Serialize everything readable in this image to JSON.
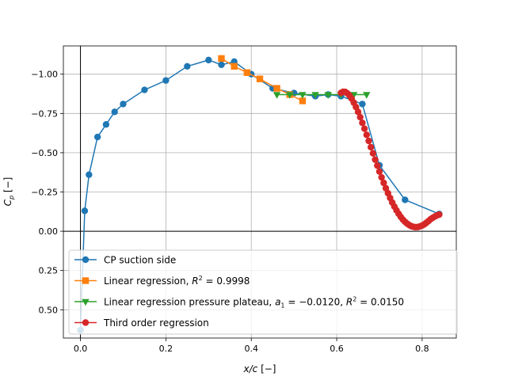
{
  "colors": {
    "background": "#ffffff",
    "axes": "#000000",
    "grid": "#b0b0b0",
    "legend_border": "#cccccc"
  },
  "chart_data": {
    "type": "line",
    "xlabel": "x/c [−]",
    "ylabel": "C_p [−]",
    "xlim": [
      -0.04,
      0.88
    ],
    "ylim": [
      0.68,
      -1.18
    ],
    "y_inverted": true,
    "grid": true,
    "reference_lines": {
      "x": 0.0,
      "y": 0.0
    },
    "xticks": [
      0.0,
      0.2,
      0.4,
      0.6,
      0.8
    ],
    "xtick_labels": [
      "0.0",
      "0.2",
      "0.4",
      "0.6",
      "0.8"
    ],
    "yticks": [
      -1.0,
      -0.75,
      -0.5,
      -0.25,
      0.0,
      0.25,
      0.5
    ],
    "ytick_labels": [
      "−1.00",
      "−0.75",
      "−0.50",
      "−0.25",
      "0.00",
      "0.25",
      "0.50"
    ],
    "legend_position": "lower-right",
    "series": [
      {
        "name": "CP suction side",
        "color": "#1f77b4",
        "marker": "circle",
        "x": [
          0.0,
          0.01,
          0.02,
          0.04,
          0.06,
          0.08,
          0.1,
          0.15,
          0.2,
          0.25,
          0.3,
          0.33,
          0.36,
          0.4,
          0.45,
          0.5,
          0.55,
          0.58,
          0.61,
          0.66,
          0.7,
          0.76,
          0.84
        ],
        "y": [
          0.63,
          -0.13,
          -0.36,
          -0.6,
          -0.68,
          -0.76,
          -0.81,
          -0.9,
          -0.96,
          -1.05,
          -1.09,
          -1.06,
          -1.08,
          -1.0,
          -0.91,
          -0.88,
          -0.86,
          -0.87,
          -0.86,
          -0.81,
          -0.42,
          -0.2,
          -0.11
        ]
      },
      {
        "name": "Linear regression, R^2 = 0.9998",
        "color": "#ff7f0e",
        "marker": "square",
        "x": [
          0.33,
          0.36,
          0.39,
          0.42,
          0.46,
          0.49,
          0.52
        ],
        "y": [
          -1.1,
          -1.05,
          -1.01,
          -0.97,
          -0.91,
          -0.87,
          -0.83
        ]
      },
      {
        "name": "Linear regression pressure plateau, a_1 = −0.0120, R^2 = 0.0150",
        "color": "#2ca02c",
        "marker": "triangle-down",
        "x": [
          0.46,
          0.49,
          0.52,
          0.55,
          0.58,
          0.61,
          0.64,
          0.67
        ],
        "y": [
          -0.87,
          -0.87,
          -0.87,
          -0.87,
          -0.87,
          -0.87,
          -0.87,
          -0.87
        ]
      },
      {
        "name": "Third order regression",
        "color": "#d62728",
        "marker": "circle",
        "x": [
          0.61,
          0.615,
          0.62,
          0.625,
          0.63,
          0.635,
          0.64,
          0.645,
          0.65,
          0.655,
          0.66,
          0.665,
          0.67,
          0.675,
          0.68,
          0.685,
          0.69,
          0.695,
          0.7,
          0.705,
          0.71,
          0.715,
          0.72,
          0.725,
          0.73,
          0.735,
          0.74,
          0.745,
          0.75,
          0.755,
          0.76,
          0.765,
          0.77,
          0.775,
          0.78,
          0.785,
          0.79,
          0.795,
          0.8,
          0.805,
          0.81,
          0.815,
          0.82,
          0.825,
          0.83,
          0.835,
          0.84
        ],
        "y": [
          -0.881,
          -0.888,
          -0.887,
          -0.878,
          -0.864,
          -0.844,
          -0.819,
          -0.791,
          -0.76,
          -0.726,
          -0.69,
          -0.653,
          -0.614,
          -0.575,
          -0.535,
          -0.496,
          -0.456,
          -0.418,
          -0.38,
          -0.343,
          -0.308,
          -0.274,
          -0.242,
          -0.212,
          -0.183,
          -0.157,
          -0.133,
          -0.111,
          -0.091,
          -0.074,
          -0.06,
          -0.048,
          -0.039,
          -0.032,
          -0.028,
          -0.026,
          -0.027,
          -0.031,
          -0.036,
          -0.044,
          -0.054,
          -0.065,
          -0.077,
          -0.086,
          -0.094,
          -0.101,
          -0.106
        ]
      }
    ]
  }
}
